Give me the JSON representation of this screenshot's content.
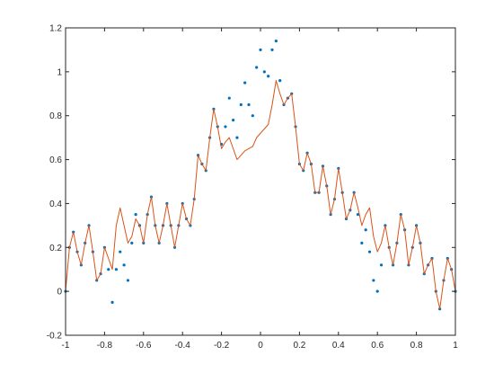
{
  "chart_data": {
    "type": "line",
    "title": "",
    "xlabel": "",
    "ylabel": "",
    "xlim": [
      -1,
      1
    ],
    "ylim": [
      -0.2,
      1.2
    ],
    "grid": false,
    "legend": "none",
    "xticks": [
      "-1",
      "-0.8",
      "-0.6",
      "-0.4",
      "-0.2",
      "0",
      "0.2",
      "0.4",
      "0.6",
      "0.8",
      "1"
    ],
    "yticks": [
      "-0.2",
      "0",
      "0.2",
      "0.4",
      "0.6",
      "0.8",
      "1",
      "1.2"
    ],
    "xtick_values": [
      -1,
      -0.8,
      -0.6,
      -0.4,
      -0.2,
      0,
      0.2,
      0.4,
      0.6,
      0.8,
      1
    ],
    "ytick_values": [
      -0.2,
      0,
      0.2,
      0.4,
      0.6,
      0.8,
      1,
      1.2
    ],
    "series": [
      {
        "style": "dots",
        "color": "#0072BD",
        "points": [
          [
            -1.0,
            0.0
          ],
          [
            -0.98,
            0.2
          ],
          [
            -0.96,
            0.27
          ],
          [
            -0.94,
            0.18
          ],
          [
            -0.92,
            0.12
          ],
          [
            -0.9,
            0.22
          ],
          [
            -0.88,
            0.3
          ],
          [
            -0.86,
            0.18
          ],
          [
            -0.84,
            0.05
          ],
          [
            -0.82,
            0.08
          ],
          [
            -0.8,
            0.2
          ],
          [
            -0.78,
            0.1
          ],
          [
            -0.76,
            -0.05
          ],
          [
            -0.74,
            0.1
          ],
          [
            -0.72,
            0.18
          ],
          [
            -0.7,
            0.12
          ],
          [
            -0.68,
            0.05
          ],
          [
            -0.66,
            0.22
          ],
          [
            -0.64,
            0.35
          ],
          [
            -0.62,
            0.3
          ],
          [
            -0.6,
            0.22
          ],
          [
            -0.58,
            0.35
          ],
          [
            -0.56,
            0.43
          ],
          [
            -0.54,
            0.3
          ],
          [
            -0.52,
            0.22
          ],
          [
            -0.5,
            0.3
          ],
          [
            -0.48,
            0.4
          ],
          [
            -0.46,
            0.3
          ],
          [
            -0.44,
            0.2
          ],
          [
            -0.42,
            0.3
          ],
          [
            -0.4,
            0.4
          ],
          [
            -0.38,
            0.33
          ],
          [
            -0.36,
            0.3
          ],
          [
            -0.34,
            0.42
          ],
          [
            -0.32,
            0.62
          ],
          [
            -0.3,
            0.58
          ],
          [
            -0.28,
            0.55
          ],
          [
            -0.26,
            0.7
          ],
          [
            -0.24,
            0.83
          ],
          [
            -0.22,
            0.75
          ],
          [
            -0.2,
            0.67
          ],
          [
            -0.18,
            0.75
          ],
          [
            -0.16,
            0.88
          ],
          [
            -0.14,
            0.78
          ],
          [
            -0.12,
            0.7
          ],
          [
            -0.1,
            0.85
          ],
          [
            -0.08,
            0.95
          ],
          [
            -0.06,
            0.85
          ],
          [
            -0.04,
            0.8
          ],
          [
            -0.02,
            1.02
          ],
          [
            0.0,
            1.1
          ],
          [
            0.02,
            1.0
          ],
          [
            0.04,
            0.98
          ],
          [
            0.06,
            1.1
          ],
          [
            0.08,
            1.14
          ],
          [
            0.1,
            0.96
          ],
          [
            0.12,
            0.85
          ],
          [
            0.14,
            0.88
          ],
          [
            0.16,
            0.9
          ],
          [
            0.18,
            0.75
          ],
          [
            0.2,
            0.58
          ],
          [
            0.22,
            0.55
          ],
          [
            0.24,
            0.63
          ],
          [
            0.26,
            0.58
          ],
          [
            0.28,
            0.45
          ],
          [
            0.3,
            0.45
          ],
          [
            0.32,
            0.57
          ],
          [
            0.34,
            0.48
          ],
          [
            0.36,
            0.35
          ],
          [
            0.38,
            0.42
          ],
          [
            0.4,
            0.56
          ],
          [
            0.42,
            0.45
          ],
          [
            0.44,
            0.33
          ],
          [
            0.46,
            0.37
          ],
          [
            0.48,
            0.45
          ],
          [
            0.5,
            0.35
          ],
          [
            0.52,
            0.22
          ],
          [
            0.54,
            0.28
          ],
          [
            0.56,
            0.18
          ],
          [
            0.58,
            0.05
          ],
          [
            0.6,
            0.0
          ],
          [
            0.62,
            0.12
          ],
          [
            0.64,
            0.3
          ],
          [
            0.66,
            0.2
          ],
          [
            0.68,
            0.12
          ],
          [
            0.7,
            0.22
          ],
          [
            0.72,
            0.35
          ],
          [
            0.74,
            0.28
          ],
          [
            0.76,
            0.12
          ],
          [
            0.78,
            0.2
          ],
          [
            0.8,
            0.3
          ],
          [
            0.82,
            0.22
          ],
          [
            0.84,
            0.08
          ],
          [
            0.86,
            0.12
          ],
          [
            0.88,
            0.15
          ],
          [
            0.9,
            0.0
          ],
          [
            0.92,
            -0.08
          ],
          [
            0.94,
            0.05
          ],
          [
            0.96,
            0.15
          ],
          [
            0.98,
            0.1
          ],
          [
            1.0,
            0.0
          ]
        ]
      },
      {
        "style": "line",
        "color": "#D95319",
        "points": [
          [
            -1.0,
            0.0
          ],
          [
            -0.98,
            0.2
          ],
          [
            -0.96,
            0.27
          ],
          [
            -0.94,
            0.18
          ],
          [
            -0.92,
            0.12
          ],
          [
            -0.9,
            0.22
          ],
          [
            -0.88,
            0.3
          ],
          [
            -0.86,
            0.18
          ],
          [
            -0.84,
            0.05
          ],
          [
            -0.82,
            0.08
          ],
          [
            -0.8,
            0.2
          ],
          [
            -0.78,
            0.15
          ],
          [
            -0.76,
            0.1
          ],
          [
            -0.74,
            0.3
          ],
          [
            -0.72,
            0.38
          ],
          [
            -0.7,
            0.3
          ],
          [
            -0.68,
            0.22
          ],
          [
            -0.66,
            0.25
          ],
          [
            -0.64,
            0.33
          ],
          [
            -0.62,
            0.3
          ],
          [
            -0.6,
            0.22
          ],
          [
            -0.58,
            0.35
          ],
          [
            -0.56,
            0.43
          ],
          [
            -0.54,
            0.3
          ],
          [
            -0.52,
            0.22
          ],
          [
            -0.5,
            0.3
          ],
          [
            -0.48,
            0.4
          ],
          [
            -0.46,
            0.3
          ],
          [
            -0.44,
            0.2
          ],
          [
            -0.42,
            0.3
          ],
          [
            -0.4,
            0.4
          ],
          [
            -0.38,
            0.33
          ],
          [
            -0.36,
            0.3
          ],
          [
            -0.34,
            0.42
          ],
          [
            -0.32,
            0.62
          ],
          [
            -0.3,
            0.58
          ],
          [
            -0.28,
            0.55
          ],
          [
            -0.26,
            0.7
          ],
          [
            -0.24,
            0.83
          ],
          [
            -0.22,
            0.75
          ],
          [
            -0.2,
            0.65
          ],
          [
            -0.18,
            0.68
          ],
          [
            -0.16,
            0.7
          ],
          [
            -0.14,
            0.65
          ],
          [
            -0.12,
            0.6
          ],
          [
            -0.1,
            0.62
          ],
          [
            -0.08,
            0.64
          ],
          [
            -0.06,
            0.65
          ],
          [
            -0.04,
            0.66
          ],
          [
            -0.02,
            0.7
          ],
          [
            0.0,
            0.72
          ],
          [
            0.02,
            0.74
          ],
          [
            0.04,
            0.76
          ],
          [
            0.06,
            0.85
          ],
          [
            0.08,
            0.96
          ],
          [
            0.1,
            0.9
          ],
          [
            0.12,
            0.85
          ],
          [
            0.14,
            0.88
          ],
          [
            0.16,
            0.9
          ],
          [
            0.18,
            0.75
          ],
          [
            0.2,
            0.58
          ],
          [
            0.22,
            0.55
          ],
          [
            0.24,
            0.63
          ],
          [
            0.26,
            0.58
          ],
          [
            0.28,
            0.45
          ],
          [
            0.3,
            0.45
          ],
          [
            0.32,
            0.57
          ],
          [
            0.34,
            0.48
          ],
          [
            0.36,
            0.35
          ],
          [
            0.38,
            0.42
          ],
          [
            0.4,
            0.56
          ],
          [
            0.42,
            0.45
          ],
          [
            0.44,
            0.33
          ],
          [
            0.46,
            0.37
          ],
          [
            0.48,
            0.45
          ],
          [
            0.5,
            0.38
          ],
          [
            0.52,
            0.3
          ],
          [
            0.54,
            0.35
          ],
          [
            0.56,
            0.38
          ],
          [
            0.58,
            0.25
          ],
          [
            0.6,
            0.18
          ],
          [
            0.62,
            0.22
          ],
          [
            0.64,
            0.3
          ],
          [
            0.66,
            0.2
          ],
          [
            0.68,
            0.12
          ],
          [
            0.7,
            0.22
          ],
          [
            0.72,
            0.35
          ],
          [
            0.74,
            0.28
          ],
          [
            0.76,
            0.12
          ],
          [
            0.78,
            0.2
          ],
          [
            0.8,
            0.3
          ],
          [
            0.82,
            0.22
          ],
          [
            0.84,
            0.08
          ],
          [
            0.86,
            0.12
          ],
          [
            0.88,
            0.15
          ],
          [
            0.9,
            0.0
          ],
          [
            0.92,
            -0.08
          ],
          [
            0.94,
            0.05
          ],
          [
            0.96,
            0.15
          ],
          [
            0.98,
            0.1
          ],
          [
            1.0,
            0.0
          ]
        ]
      }
    ]
  }
}
